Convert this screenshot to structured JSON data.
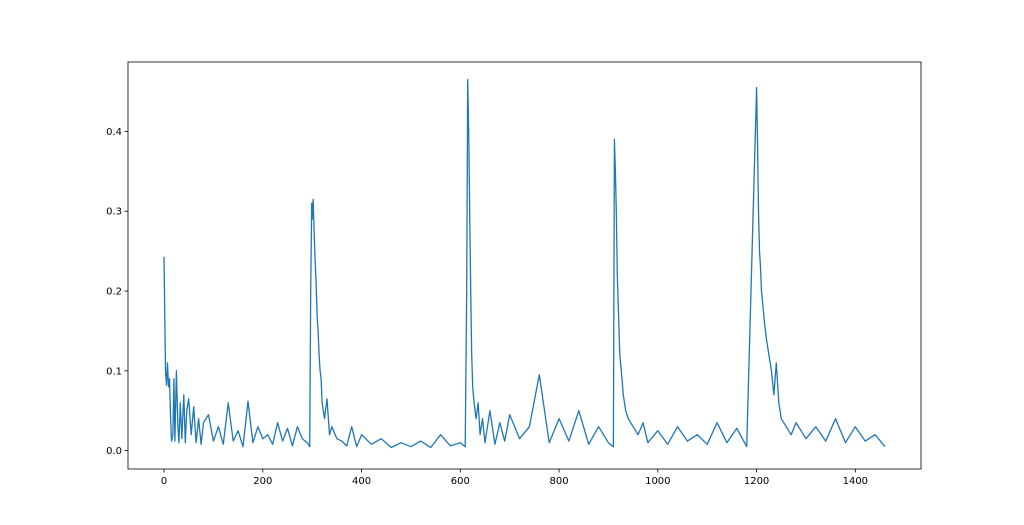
{
  "chart_data": {
    "type": "line",
    "title": "",
    "xlabel": "",
    "ylabel": "",
    "xlim": [
      -73,
      1533
    ],
    "ylim": [
      -0.023,
      0.487
    ],
    "grid": false,
    "legend": "none",
    "x_ticks": [
      {
        "value": 0,
        "label": "0"
      },
      {
        "value": 200,
        "label": "200"
      },
      {
        "value": 400,
        "label": "400"
      },
      {
        "value": 600,
        "label": "600"
      },
      {
        "value": 800,
        "label": "800"
      },
      {
        "value": 1000,
        "label": "1000"
      },
      {
        "value": 1200,
        "label": "1200"
      },
      {
        "value": 1400,
        "label": "1400"
      }
    ],
    "y_ticks": [
      {
        "value": 0.0,
        "label": "0.0"
      },
      {
        "value": 0.1,
        "label": "0.1"
      },
      {
        "value": 0.2,
        "label": "0.2"
      },
      {
        "value": 0.3,
        "label": "0.3"
      },
      {
        "value": 0.4,
        "label": "0.4"
      }
    ],
    "series": [
      {
        "color": "#1f77b4",
        "x": [
          0,
          3,
          5,
          7,
          9,
          11,
          13,
          15,
          18,
          20,
          22,
          25,
          28,
          30,
          33,
          36,
          40,
          43,
          46,
          50,
          55,
          60,
          65,
          70,
          75,
          80,
          90,
          100,
          110,
          120,
          130,
          140,
          150,
          160,
          170,
          180,
          190,
          200,
          210,
          220,
          230,
          240,
          250,
          260,
          270,
          280,
          290,
          295,
          297,
          299,
          300,
          302,
          304,
          306,
          308,
          310,
          312,
          314,
          316,
          318,
          320,
          325,
          330,
          335,
          340,
          350,
          360,
          370,
          380,
          390,
          400,
          420,
          440,
          460,
          480,
          500,
          520,
          540,
          560,
          580,
          600,
          610,
          613,
          615,
          617,
          619,
          621,
          623,
          625,
          628,
          632,
          636,
          640,
          645,
          650,
          660,
          670,
          680,
          690,
          700,
          720,
          740,
          760,
          780,
          800,
          820,
          840,
          860,
          880,
          900,
          910,
          912,
          914,
          916,
          918,
          920,
          923,
          926,
          930,
          935,
          940,
          950,
          960,
          970,
          980,
          1000,
          1020,
          1040,
          1060,
          1080,
          1100,
          1120,
          1140,
          1160,
          1180,
          1200,
          1202,
          1204,
          1206,
          1208,
          1210,
          1213,
          1216,
          1220,
          1225,
          1230,
          1235,
          1240,
          1245,
          1250,
          1260,
          1270,
          1280,
          1300,
          1320,
          1340,
          1360,
          1380,
          1400,
          1420,
          1440,
          1460
        ],
        "y": [
          0.243,
          0.1,
          0.082,
          0.11,
          0.08,
          0.09,
          0.045,
          0.012,
          0.02,
          0.09,
          0.012,
          0.1,
          0.03,
          0.01,
          0.06,
          0.015,
          0.07,
          0.01,
          0.05,
          0.065,
          0.02,
          0.055,
          0.01,
          0.04,
          0.008,
          0.035,
          0.045,
          0.012,
          0.03,
          0.008,
          0.06,
          0.012,
          0.025,
          0.005,
          0.062,
          0.01,
          0.03,
          0.015,
          0.02,
          0.008,
          0.035,
          0.012,
          0.028,
          0.006,
          0.03,
          0.015,
          0.01,
          0.005,
          0.2,
          0.31,
          0.29,
          0.315,
          0.27,
          0.24,
          0.21,
          0.17,
          0.15,
          0.12,
          0.1,
          0.09,
          0.06,
          0.04,
          0.065,
          0.02,
          0.03,
          0.015,
          0.012,
          0.006,
          0.03,
          0.005,
          0.02,
          0.008,
          0.015,
          0.004,
          0.01,
          0.005,
          0.012,
          0.004,
          0.02,
          0.006,
          0.01,
          0.005,
          0.2,
          0.465,
          0.4,
          0.3,
          0.2,
          0.12,
          0.08,
          0.06,
          0.04,
          0.06,
          0.02,
          0.04,
          0.01,
          0.05,
          0.008,
          0.035,
          0.012,
          0.045,
          0.015,
          0.03,
          0.095,
          0.01,
          0.04,
          0.012,
          0.05,
          0.008,
          0.03,
          0.01,
          0.005,
          0.39,
          0.35,
          0.3,
          0.22,
          0.18,
          0.12,
          0.1,
          0.07,
          0.05,
          0.04,
          0.03,
          0.02,
          0.035,
          0.01,
          0.025,
          0.008,
          0.03,
          0.012,
          0.02,
          0.008,
          0.035,
          0.01,
          0.028,
          0.005,
          0.455,
          0.38,
          0.3,
          0.25,
          0.23,
          0.2,
          0.18,
          0.16,
          0.14,
          0.12,
          0.1,
          0.07,
          0.11,
          0.06,
          0.04,
          0.03,
          0.02,
          0.035,
          0.015,
          0.03,
          0.012,
          0.04,
          0.01,
          0.03,
          0.012,
          0.02,
          0.005
        ]
      }
    ]
  }
}
